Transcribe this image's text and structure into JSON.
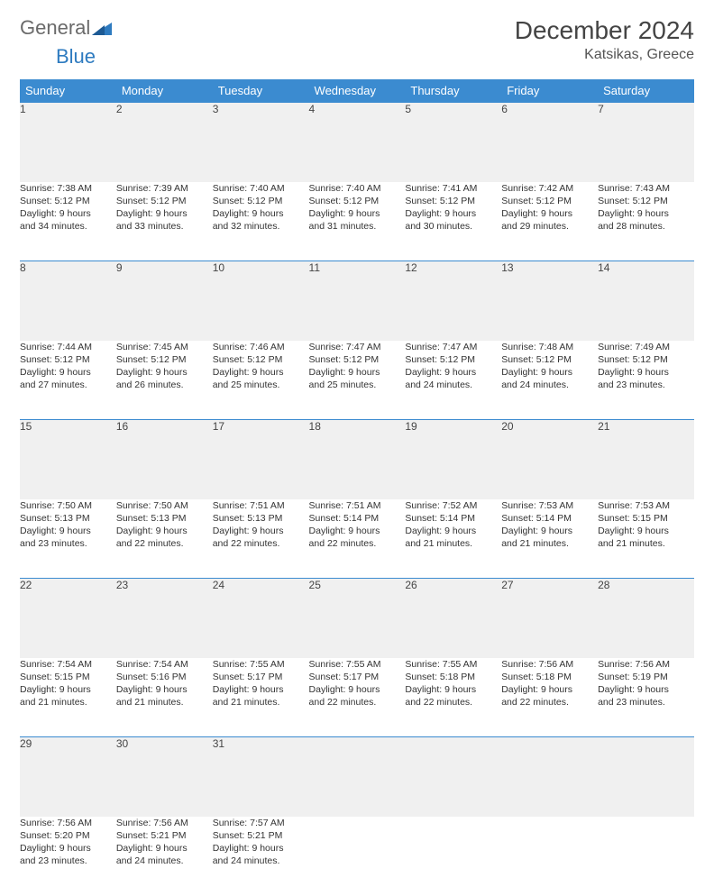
{
  "brand": {
    "word1": "General",
    "word2": "Blue"
  },
  "title": "December 2024",
  "location": "Katsikas, Greece",
  "colors": {
    "header_bg": "#3b8bd0",
    "header_text": "#ffffff",
    "daynum_bg": "#f0f0f0",
    "border": "#3b8bd0",
    "text": "#333333",
    "brand_gray": "#6a6a6a",
    "brand_blue": "#2e7bc0"
  },
  "weekdays": [
    "Sunday",
    "Monday",
    "Tuesday",
    "Wednesday",
    "Thursday",
    "Friday",
    "Saturday"
  ],
  "weeks": [
    [
      {
        "n": "1",
        "sr": "Sunrise: 7:38 AM",
        "ss": "Sunset: 5:12 PM",
        "d1": "Daylight: 9 hours",
        "d2": "and 34 minutes."
      },
      {
        "n": "2",
        "sr": "Sunrise: 7:39 AM",
        "ss": "Sunset: 5:12 PM",
        "d1": "Daylight: 9 hours",
        "d2": "and 33 minutes."
      },
      {
        "n": "3",
        "sr": "Sunrise: 7:40 AM",
        "ss": "Sunset: 5:12 PM",
        "d1": "Daylight: 9 hours",
        "d2": "and 32 minutes."
      },
      {
        "n": "4",
        "sr": "Sunrise: 7:40 AM",
        "ss": "Sunset: 5:12 PM",
        "d1": "Daylight: 9 hours",
        "d2": "and 31 minutes."
      },
      {
        "n": "5",
        "sr": "Sunrise: 7:41 AM",
        "ss": "Sunset: 5:12 PM",
        "d1": "Daylight: 9 hours",
        "d2": "and 30 minutes."
      },
      {
        "n": "6",
        "sr": "Sunrise: 7:42 AM",
        "ss": "Sunset: 5:12 PM",
        "d1": "Daylight: 9 hours",
        "d2": "and 29 minutes."
      },
      {
        "n": "7",
        "sr": "Sunrise: 7:43 AM",
        "ss": "Sunset: 5:12 PM",
        "d1": "Daylight: 9 hours",
        "d2": "and 28 minutes."
      }
    ],
    [
      {
        "n": "8",
        "sr": "Sunrise: 7:44 AM",
        "ss": "Sunset: 5:12 PM",
        "d1": "Daylight: 9 hours",
        "d2": "and 27 minutes."
      },
      {
        "n": "9",
        "sr": "Sunrise: 7:45 AM",
        "ss": "Sunset: 5:12 PM",
        "d1": "Daylight: 9 hours",
        "d2": "and 26 minutes."
      },
      {
        "n": "10",
        "sr": "Sunrise: 7:46 AM",
        "ss": "Sunset: 5:12 PM",
        "d1": "Daylight: 9 hours",
        "d2": "and 25 minutes."
      },
      {
        "n": "11",
        "sr": "Sunrise: 7:47 AM",
        "ss": "Sunset: 5:12 PM",
        "d1": "Daylight: 9 hours",
        "d2": "and 25 minutes."
      },
      {
        "n": "12",
        "sr": "Sunrise: 7:47 AM",
        "ss": "Sunset: 5:12 PM",
        "d1": "Daylight: 9 hours",
        "d2": "and 24 minutes."
      },
      {
        "n": "13",
        "sr": "Sunrise: 7:48 AM",
        "ss": "Sunset: 5:12 PM",
        "d1": "Daylight: 9 hours",
        "d2": "and 24 minutes."
      },
      {
        "n": "14",
        "sr": "Sunrise: 7:49 AM",
        "ss": "Sunset: 5:12 PM",
        "d1": "Daylight: 9 hours",
        "d2": "and 23 minutes."
      }
    ],
    [
      {
        "n": "15",
        "sr": "Sunrise: 7:50 AM",
        "ss": "Sunset: 5:13 PM",
        "d1": "Daylight: 9 hours",
        "d2": "and 23 minutes."
      },
      {
        "n": "16",
        "sr": "Sunrise: 7:50 AM",
        "ss": "Sunset: 5:13 PM",
        "d1": "Daylight: 9 hours",
        "d2": "and 22 minutes."
      },
      {
        "n": "17",
        "sr": "Sunrise: 7:51 AM",
        "ss": "Sunset: 5:13 PM",
        "d1": "Daylight: 9 hours",
        "d2": "and 22 minutes."
      },
      {
        "n": "18",
        "sr": "Sunrise: 7:51 AM",
        "ss": "Sunset: 5:14 PM",
        "d1": "Daylight: 9 hours",
        "d2": "and 22 minutes."
      },
      {
        "n": "19",
        "sr": "Sunrise: 7:52 AM",
        "ss": "Sunset: 5:14 PM",
        "d1": "Daylight: 9 hours",
        "d2": "and 21 minutes."
      },
      {
        "n": "20",
        "sr": "Sunrise: 7:53 AM",
        "ss": "Sunset: 5:14 PM",
        "d1": "Daylight: 9 hours",
        "d2": "and 21 minutes."
      },
      {
        "n": "21",
        "sr": "Sunrise: 7:53 AM",
        "ss": "Sunset: 5:15 PM",
        "d1": "Daylight: 9 hours",
        "d2": "and 21 minutes."
      }
    ],
    [
      {
        "n": "22",
        "sr": "Sunrise: 7:54 AM",
        "ss": "Sunset: 5:15 PM",
        "d1": "Daylight: 9 hours",
        "d2": "and 21 minutes."
      },
      {
        "n": "23",
        "sr": "Sunrise: 7:54 AM",
        "ss": "Sunset: 5:16 PM",
        "d1": "Daylight: 9 hours",
        "d2": "and 21 minutes."
      },
      {
        "n": "24",
        "sr": "Sunrise: 7:55 AM",
        "ss": "Sunset: 5:17 PM",
        "d1": "Daylight: 9 hours",
        "d2": "and 21 minutes."
      },
      {
        "n": "25",
        "sr": "Sunrise: 7:55 AM",
        "ss": "Sunset: 5:17 PM",
        "d1": "Daylight: 9 hours",
        "d2": "and 22 minutes."
      },
      {
        "n": "26",
        "sr": "Sunrise: 7:55 AM",
        "ss": "Sunset: 5:18 PM",
        "d1": "Daylight: 9 hours",
        "d2": "and 22 minutes."
      },
      {
        "n": "27",
        "sr": "Sunrise: 7:56 AM",
        "ss": "Sunset: 5:18 PM",
        "d1": "Daylight: 9 hours",
        "d2": "and 22 minutes."
      },
      {
        "n": "28",
        "sr": "Sunrise: 7:56 AM",
        "ss": "Sunset: 5:19 PM",
        "d1": "Daylight: 9 hours",
        "d2": "and 23 minutes."
      }
    ],
    [
      {
        "n": "29",
        "sr": "Sunrise: 7:56 AM",
        "ss": "Sunset: 5:20 PM",
        "d1": "Daylight: 9 hours",
        "d2": "and 23 minutes."
      },
      {
        "n": "30",
        "sr": "Sunrise: 7:56 AM",
        "ss": "Sunset: 5:21 PM",
        "d1": "Daylight: 9 hours",
        "d2": "and 24 minutes."
      },
      {
        "n": "31",
        "sr": "Sunrise: 7:57 AM",
        "ss": "Sunset: 5:21 PM",
        "d1": "Daylight: 9 hours",
        "d2": "and 24 minutes."
      },
      null,
      null,
      null,
      null
    ]
  ]
}
